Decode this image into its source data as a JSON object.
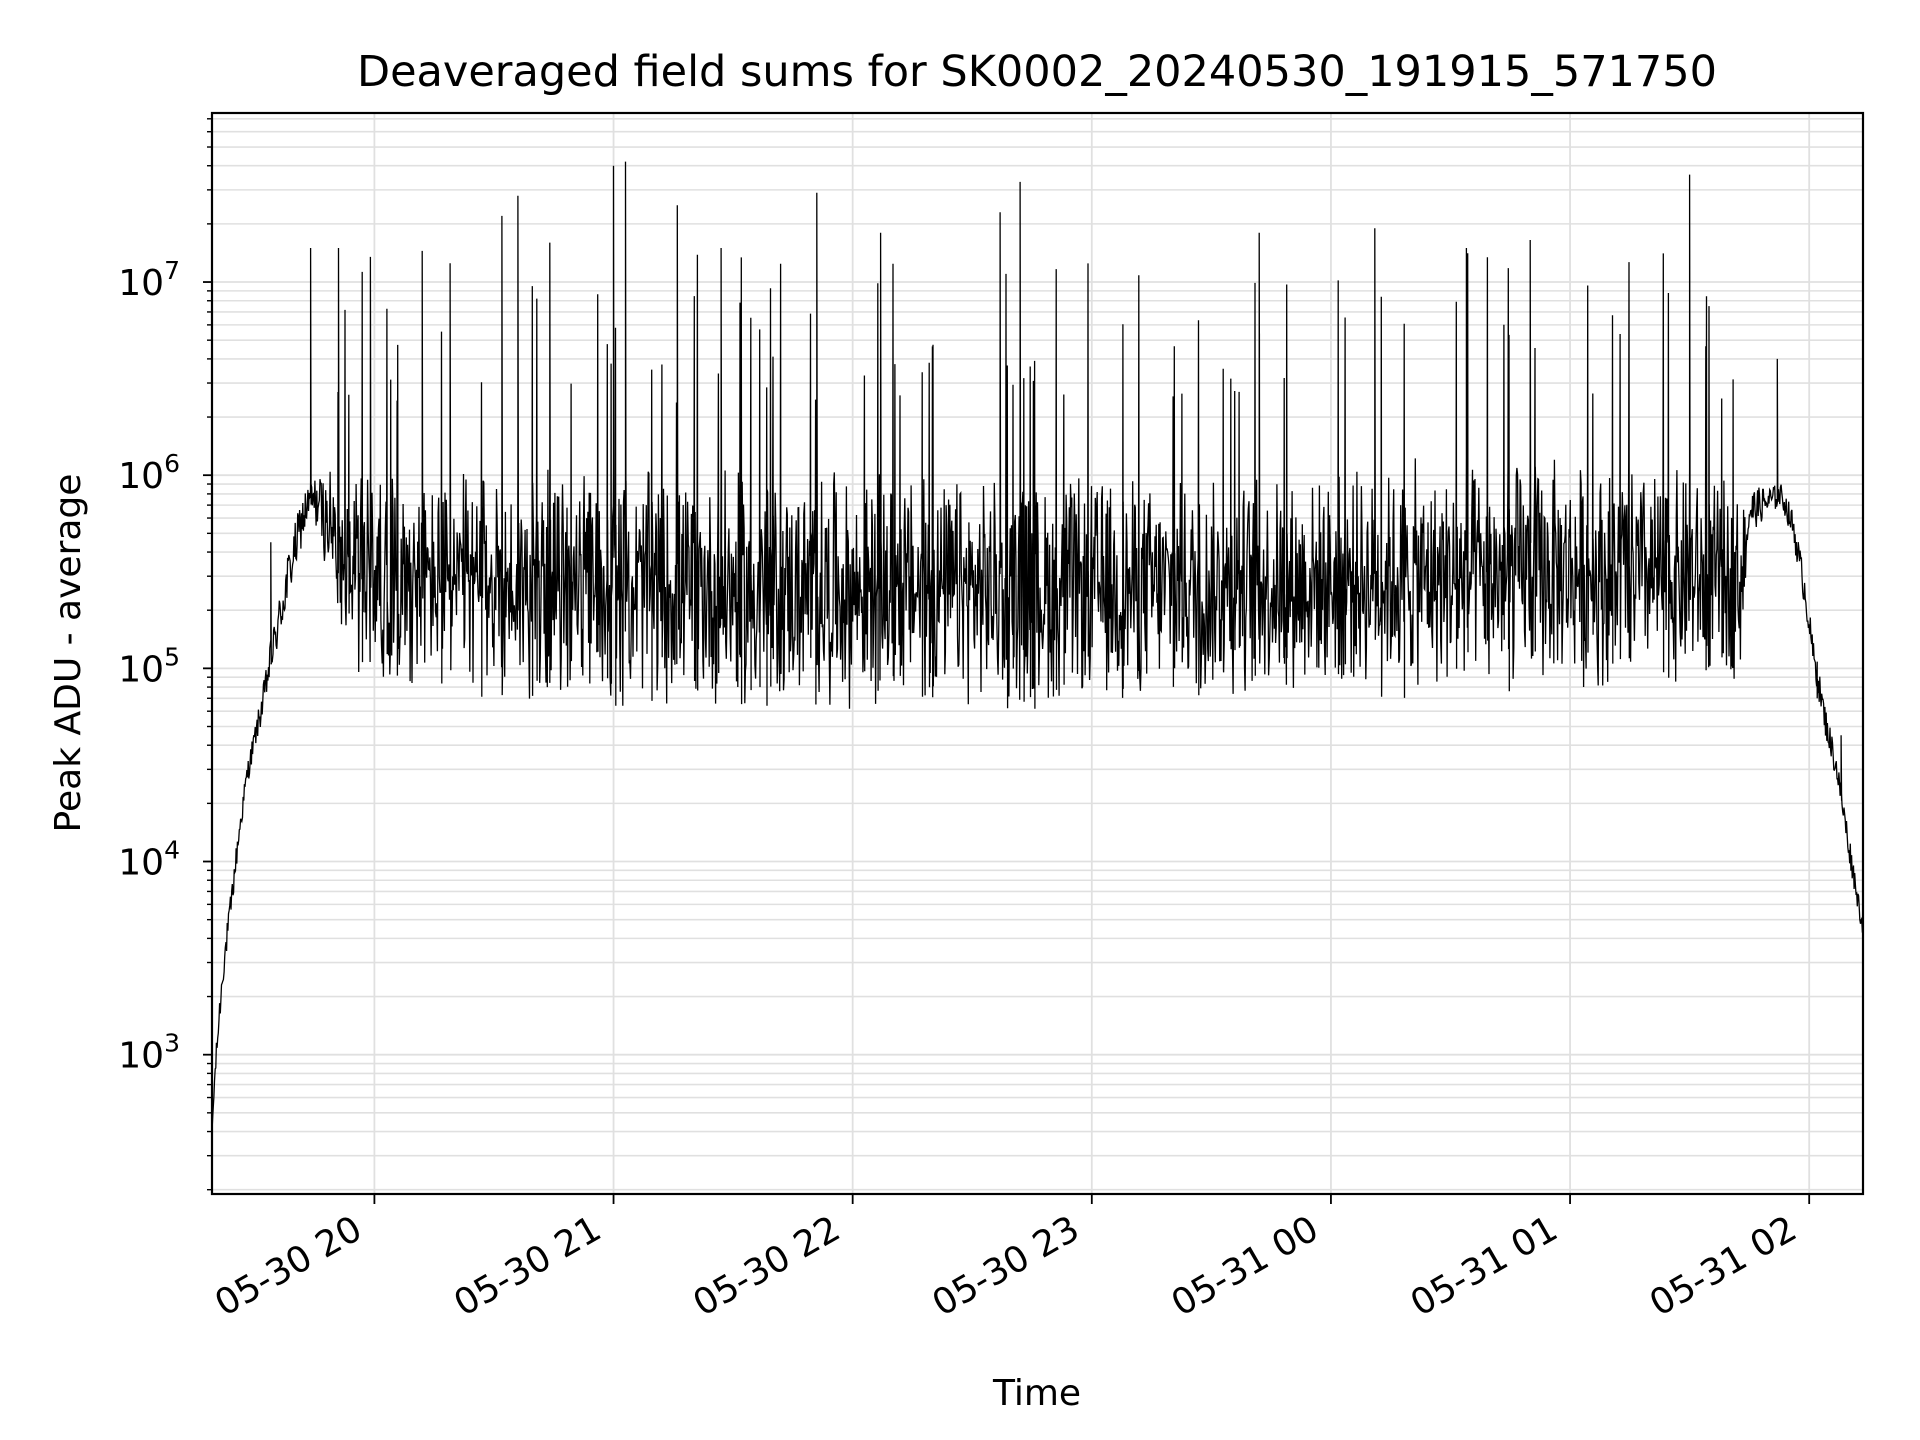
{
  "chart_data": {
    "type": "line",
    "title": "Deaveraged field sums for SK0002_20240530_191915_571750",
    "xlabel": "Time",
    "ylabel": "Peak ADU - average",
    "y_scale": "log",
    "x_range": [
      "2024-05-30 19:19:15",
      "2024-05-31 02:13:30"
    ],
    "ylim": [
      190,
      75000000
    ],
    "grid": true,
    "grid_minor": true,
    "legend": "none",
    "line_color": "#000000",
    "grid_color": "#e0e0e0",
    "x_ticks": [
      {
        "value": "2024-05-30 20:00",
        "label": "05-30 20"
      },
      {
        "value": "2024-05-30 21:00",
        "label": "05-30 21"
      },
      {
        "value": "2024-05-30 22:00",
        "label": "05-30 22"
      },
      {
        "value": "2024-05-30 23:00",
        "label": "05-30 23"
      },
      {
        "value": "2024-05-31 00:00",
        "label": "05-31 00"
      },
      {
        "value": "2024-05-31 01:00",
        "label": "05-31 01"
      },
      {
        "value": "2024-05-31 02:00",
        "label": "05-31 02"
      }
    ],
    "y_ticks": [
      {
        "value": 1000,
        "base": "10",
        "exp": "3"
      },
      {
        "value": 10000,
        "base": "10",
        "exp": "4"
      },
      {
        "value": 100000,
        "base": "10",
        "exp": "5"
      },
      {
        "value": 1000000,
        "base": "10",
        "exp": "6"
      },
      {
        "value": 10000000,
        "base": "10",
        "exp": "7"
      }
    ],
    "series": [
      {
        "envelope": [
          {
            "t": "2024-05-30 19:19:15",
            "low": 400,
            "high": 400
          },
          {
            "t": "2024-05-30 19:20:00",
            "low": 700,
            "high": 900
          },
          {
            "t": "2024-05-30 19:21:00",
            "low": 1300,
            "high": 1800
          },
          {
            "t": "2024-05-30 19:22:00",
            "low": 2300,
            "high": 3200
          },
          {
            "t": "2024-05-30 19:24:00",
            "low": 5000,
            "high": 7000
          },
          {
            "t": "2024-05-30 19:26:00",
            "low": 12000,
            "high": 16000
          },
          {
            "t": "2024-05-30 19:28:00",
            "low": 24000,
            "high": 32000
          },
          {
            "t": "2024-05-30 19:30:00",
            "low": 38000,
            "high": 50000
          },
          {
            "t": "2024-05-30 19:32:00",
            "low": 55000,
            "high": 80000
          },
          {
            "t": "2024-05-30 19:34:00",
            "low": 90000,
            "high": 140000
          },
          {
            "t": "2024-05-30 19:36:00",
            "low": 130000,
            "high": 230000
          },
          {
            "t": "2024-05-30 19:38:00",
            "low": 200000,
            "high": 380000
          },
          {
            "t": "2024-05-30 19:40:00",
            "low": 300000,
            "high": 560000
          },
          {
            "t": "2024-05-30 19:42:00",
            "low": 450000,
            "high": 800000
          },
          {
            "t": "2024-05-30 19:44:00",
            "low": 600000,
            "high": 950000
          },
          {
            "t": "2024-05-30 19:46:00",
            "low": 500000,
            "high": 1000000
          },
          {
            "t": "2024-05-30 19:50:00",
            "low": 200000,
            "high": 1100000
          },
          {
            "t": "2024-05-30 19:55:00",
            "low": 90000,
            "high": 1100000
          },
          {
            "t": "2024-05-30 20:30:00",
            "low": 65000,
            "high": 1100000
          },
          {
            "t": "2024-05-30 21:30:00",
            "low": 60000,
            "high": 1100000
          },
          {
            "t": "2024-05-30 22:30:00",
            "low": 60000,
            "high": 1050000
          },
          {
            "t": "2024-05-30 23:30:00",
            "low": 65000,
            "high": 1050000
          },
          {
            "t": "2024-05-30 23:55:00",
            "low": 70000,
            "high": 1150000
          },
          {
            "t": "2024-05-31 00:30:00",
            "low": 70000,
            "high": 1250000
          },
          {
            "t": "2024-05-31 01:00:00",
            "low": 75000,
            "high": 1350000
          },
          {
            "t": "2024-05-31 01:30:00",
            "low": 75000,
            "high": 1100000
          },
          {
            "t": "2024-05-31 01:43:00",
            "low": 90000,
            "high": 900000
          },
          {
            "t": "2024-05-31 01:45:00",
            "low": 500000,
            "high": 850000
          },
          {
            "t": "2024-05-31 01:53:00",
            "low": 700000,
            "high": 900000
          },
          {
            "t": "2024-05-31 01:56:00",
            "low": 450000,
            "high": 650000
          },
          {
            "t": "2024-05-31 01:59:00",
            "low": 200000,
            "high": 300000
          },
          {
            "t": "2024-05-31 02:01:00",
            "low": 100000,
            "high": 140000
          },
          {
            "t": "2024-05-31 02:04:00",
            "low": 45000,
            "high": 65000
          },
          {
            "t": "2024-05-31 02:07:00",
            "low": 25000,
            "high": 35000
          },
          {
            "t": "2024-05-31 02:10:00",
            "low": 10000,
            "high": 14000
          },
          {
            "t": "2024-05-31 02:13:30",
            "low": 4000,
            "high": 5000
          }
        ],
        "spikes": [
          {
            "t": "2024-05-30 19:34:00",
            "value": 450000
          },
          {
            "t": "2024-05-30 19:44:00",
            "value": 15000000
          },
          {
            "t": "2024-05-30 19:51:00",
            "value": 15000000
          },
          {
            "t": "2024-05-30 19:59:00",
            "value": 13500000
          },
          {
            "t": "2024-05-30 20:12:00",
            "value": 14500000
          },
          {
            "t": "2024-05-30 20:19:00",
            "value": 12500000
          },
          {
            "t": "2024-05-30 20:32:00",
            "value": 22000000
          },
          {
            "t": "2024-05-30 20:36:00",
            "value": 28000000
          },
          {
            "t": "2024-05-30 20:44:00",
            "value": 16000000
          },
          {
            "t": "2024-05-30 21:00:00",
            "value": 40000000
          },
          {
            "t": "2024-05-30 21:03:00",
            "value": 42000000
          },
          {
            "t": "2024-05-30 21:16:00",
            "value": 25000000
          },
          {
            "t": "2024-05-30 21:27:00",
            "value": 15000000
          },
          {
            "t": "2024-05-30 21:51:00",
            "value": 29000000
          },
          {
            "t": "2024-05-30 22:07:00",
            "value": 18000000
          },
          {
            "t": "2024-05-30 22:37:00",
            "value": 23000000
          },
          {
            "t": "2024-05-30 22:42:00",
            "value": 33000000
          },
          {
            "t": "2024-05-30 23:42:00",
            "value": 18000000
          },
          {
            "t": "2024-05-31 00:11:00",
            "value": 19000000
          },
          {
            "t": "2024-05-31 00:34:00",
            "value": 15000000
          },
          {
            "t": "2024-05-31 00:50:00",
            "value": 16500000
          },
          {
            "t": "2024-05-31 01:30:00",
            "value": 36000000
          },
          {
            "t": "2024-05-31 01:52:00",
            "value": 4000000
          },
          {
            "t": "2024-05-31 02:02:00",
            "value": 70000
          },
          {
            "t": "2024-05-31 02:08:00",
            "value": 45000
          }
        ]
      }
    ]
  }
}
